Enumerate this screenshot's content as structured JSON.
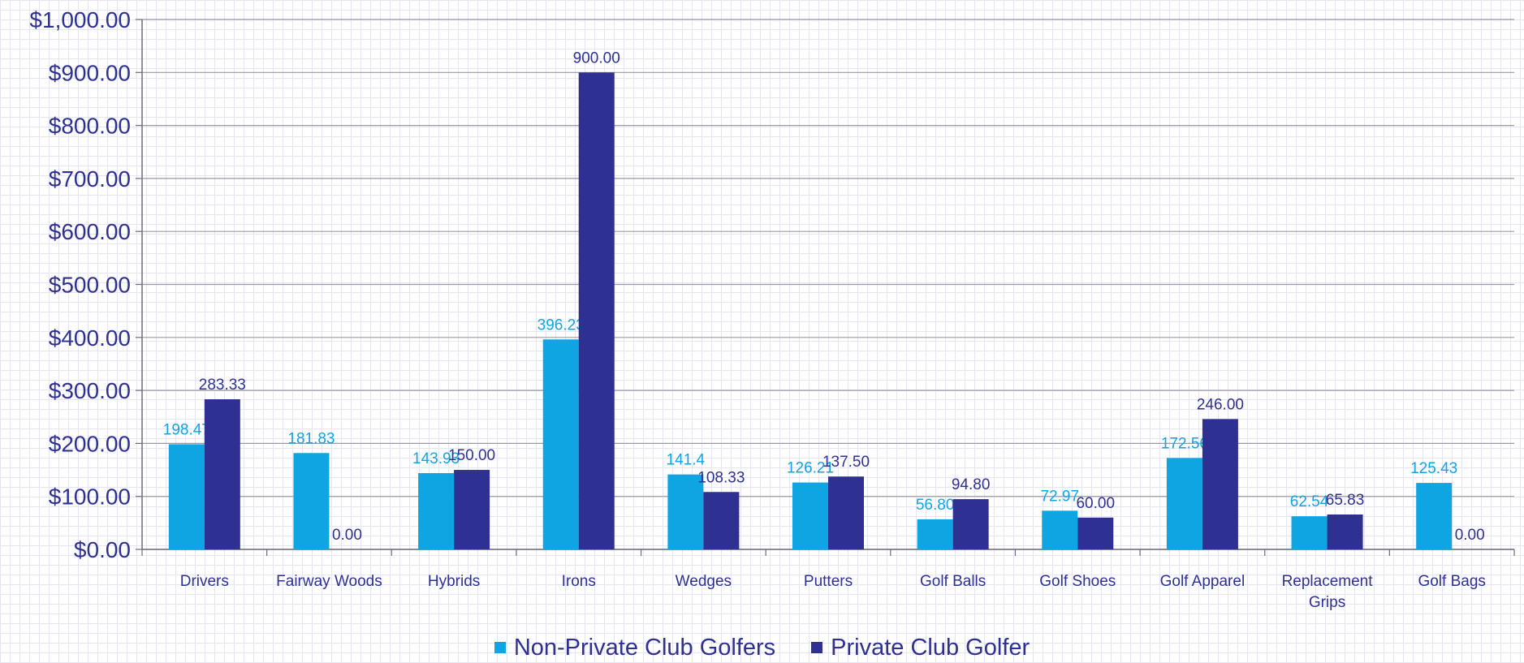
{
  "chart_data": {
    "type": "bar",
    "categories": [
      "Drivers",
      "Fairway Woods",
      "Hybrids",
      "Irons",
      "Wedges",
      "Putters",
      "Golf Balls",
      "Golf Shoes",
      "Golf Apparel",
      "Replacement Grips",
      "Golf Bags"
    ],
    "series": [
      {
        "name": "Non-Private Club Golfers",
        "color": "#0fa5e2",
        "values": [
          198.47,
          181.83,
          143.93,
          396.23,
          141.4,
          126.21,
          56.8,
          72.97,
          172.56,
          62.54,
          125.43
        ],
        "labels": [
          "198.47",
          "181.83",
          "143.93",
          "396.23",
          "141.4",
          "126.21",
          "56.80",
          "72.97",
          "172.56",
          "62.54",
          "125.43"
        ]
      },
      {
        "name": "Private Club Golfer",
        "color": "#2e3192",
        "values": [
          283.33,
          0,
          150,
          900,
          108.33,
          137.5,
          94.8,
          60,
          246,
          65.83,
          0
        ],
        "labels": [
          "283.33",
          "0.00",
          "150.00",
          "900.00",
          "108.33",
          "137.50",
          "94.80",
          "60.00",
          "246.00",
          "65.83",
          "0.00"
        ]
      }
    ],
    "ylim": [
      0,
      1000
    ],
    "yticks": [
      0,
      100,
      200,
      300,
      400,
      500,
      600,
      700,
      800,
      900,
      1000
    ],
    "ytick_labels": [
      "$0.00",
      "$100.00",
      "$200.00",
      "$300.00",
      "$400.00",
      "$500.00",
      "$600.00",
      "$700.00",
      "$800.00",
      "$900.00",
      "$1,000.00"
    ],
    "grid": true,
    "legend_position": "bottom"
  }
}
